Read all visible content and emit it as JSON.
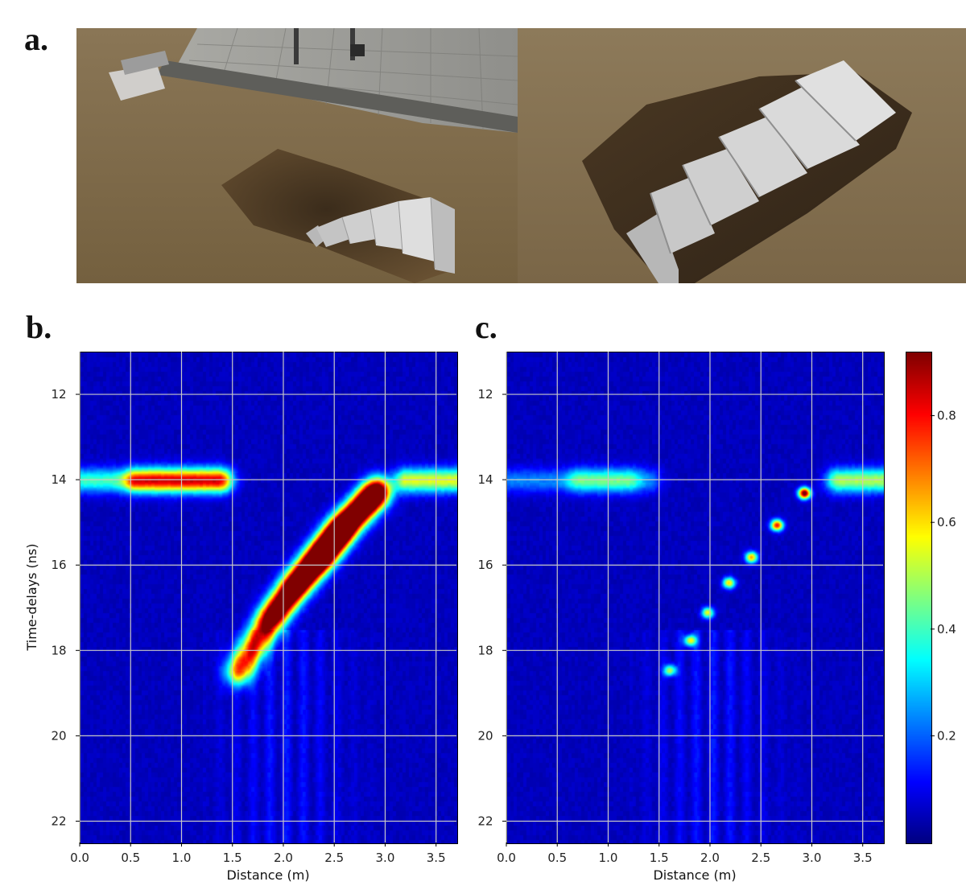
{
  "labels": {
    "a": "a.",
    "b": "b.",
    "c": "c."
  },
  "photos": [
    {
      "name": "excavation-pit-with-staircase-and-radar-cart"
    },
    {
      "name": "foil-covered-staircase-in-pit"
    }
  ],
  "colors": {
    "cmap": "jet",
    "grid": "#c8c8c8",
    "background": "#00008f"
  },
  "chart_data": [
    {
      "type": "heatmap",
      "panel": "b",
      "xlabel": "Distance (m)",
      "ylabel": "Time-delays (ns)",
      "xlim": [
        0.0,
        3.7
      ],
      "ylim": [
        22.5,
        11.0
      ],
      "xticks": [
        "0.0",
        "0.5",
        "1.0",
        "1.5",
        "2.0",
        "2.5",
        "3.0",
        "3.5"
      ],
      "yticks": [
        "12",
        "14",
        "16",
        "18",
        "20",
        "22"
      ],
      "grid": true,
      "features": {
        "surface_band": {
          "y": 14.0,
          "segments": [
            [
              0.0,
              1.4,
              0.35
            ],
            [
              0.55,
              1.35,
              0.45
            ],
            [
              3.2,
              3.7,
              0.5
            ]
          ]
        },
        "stair_reflection": {
          "points": [
            [
              1.55,
              18.5,
              0.5
            ],
            [
              1.85,
              17.3,
              0.6
            ],
            [
              2.1,
              16.5,
              0.65
            ],
            [
              2.35,
              15.8,
              0.78
            ],
            [
              2.58,
              15.1,
              0.85
            ],
            [
              2.92,
              14.25,
              0.92
            ]
          ],
          "smeared": true
        }
      },
      "peak_value": 0.92
    },
    {
      "type": "heatmap",
      "panel": "c",
      "xlabel": "Distance (m)",
      "ylabel": "",
      "xlim": [
        0.0,
        3.7
      ],
      "ylim": [
        22.5,
        11.0
      ],
      "xticks": [
        "0.0",
        "0.5",
        "1.0",
        "1.5",
        "2.0",
        "2.5",
        "3.0",
        "3.5"
      ],
      "yticks": [
        "12",
        "14",
        "16",
        "18",
        "20",
        "22"
      ],
      "grid": true,
      "features": {
        "surface_band": {
          "y": 14.0,
          "segments": [
            [
              0.0,
              1.4,
              0.18
            ],
            [
              0.7,
              1.2,
              0.22
            ],
            [
              3.25,
              3.7,
              0.45
            ]
          ]
        },
        "stair_reflection": {
          "points": [
            [
              1.6,
              18.45,
              0.45
            ],
            [
              1.8,
              17.75,
              0.5
            ],
            [
              1.97,
              17.1,
              0.5
            ],
            [
              2.18,
              16.4,
              0.55
            ],
            [
              2.4,
              15.8,
              0.6
            ],
            [
              2.65,
              15.05,
              0.75
            ],
            [
              2.92,
              14.3,
              0.92
            ]
          ],
          "smeared": false
        }
      },
      "peak_value": 0.92,
      "colorbar": {
        "min": 0.0,
        "max": 0.92,
        "ticks": [
          "0.2",
          "0.4",
          "0.6",
          "0.8"
        ],
        "tick_values": [
          0.2,
          0.4,
          0.6,
          0.8
        ]
      }
    }
  ]
}
